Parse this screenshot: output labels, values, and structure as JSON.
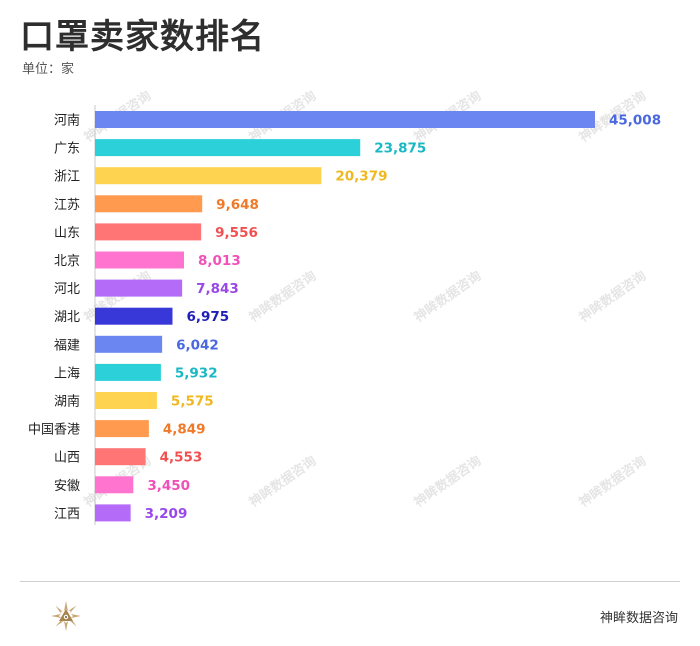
{
  "header": {
    "title": "口罩卖家数排名",
    "unit": "单位：家"
  },
  "footer": {
    "brand": "神眸数据咨询"
  },
  "watermark": "神眸数据咨询",
  "chart_data": {
    "type": "bar",
    "orientation": "horizontal",
    "title": "口罩卖家数排名",
    "unit": "单位：家",
    "categories": [
      "河南",
      "广东",
      "浙江",
      "江苏",
      "山东",
      "北京",
      "河北",
      "湖北",
      "福建",
      "上海",
      "湖南",
      "中国香港",
      "山西",
      "安徽",
      "江西"
    ],
    "values": [
      45008,
      23875,
      20379,
      9648,
      9556,
      8013,
      7843,
      6975,
      6042,
      5932,
      5575,
      4849,
      4553,
      3450,
      3209
    ],
    "value_labels": [
      "45,008",
      "23,875",
      "20,379",
      "9,648",
      "9,556",
      "8,013",
      "7,843",
      "6,975",
      "6,042",
      "5,932",
      "5,575",
      "4,849",
      "4,553",
      "3,450",
      "3,209"
    ],
    "xlim": [
      0,
      45008
    ],
    "grid": false,
    "legend": "none"
  },
  "colors": {
    "bars": [
      "#6b86f0",
      "#2bd0d8",
      "#fdd34f",
      "#ff9a4e",
      "#ff7474",
      "#ff74cf",
      "#b46cf8",
      "#3838d8",
      "#6b86f0",
      "#2bd0d8",
      "#fdd34f",
      "#ff9a4e",
      "#ff7474",
      "#ff74cf",
      "#b46cf8"
    ],
    "labels": [
      "#4a68e0",
      "#19b8c4",
      "#f0b820",
      "#f07a28",
      "#f05050",
      "#f050b8",
      "#9848e8",
      "#2020b8",
      "#4a68e0",
      "#19b8c4",
      "#f0b820",
      "#f07a28",
      "#f05050",
      "#f050b8",
      "#9848e8"
    ]
  }
}
